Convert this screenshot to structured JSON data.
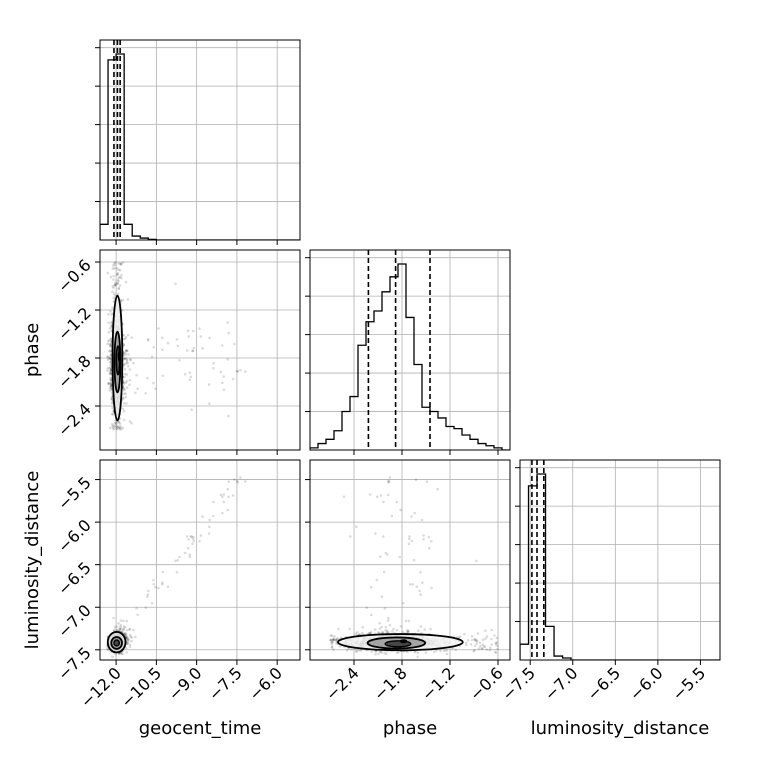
{
  "chart_data": {
    "type": "corner",
    "parameters": [
      "geocent_time",
      "phase",
      "luminosity_distance"
    ],
    "axes": {
      "geocent_time": {
        "label": "geocent_time",
        "ticks": [
          -12.0,
          -10.5,
          -9.0,
          -7.5,
          -6.0
        ],
        "tick_labels": [
          "−12.0",
          "−10.5",
          "−9.0",
          "−7.5",
          "−6.0"
        ],
        "range": [
          -12.6,
          -5.15
        ],
        "quantiles": [
          -12.08,
          -11.95,
          -11.85
        ]
      },
      "phase": {
        "label": "phase",
        "ticks": [
          -2.4,
          -1.8,
          -1.2,
          -0.6
        ],
        "tick_labels": [
          "−2.4",
          "−1.8",
          "−1.2",
          "−0.6"
        ],
        "range": [
          -2.95,
          -0.45
        ],
        "quantiles": [
          -2.22,
          -1.88,
          -1.45
        ]
      },
      "luminosity_distance": {
        "label": "luminosity_distance",
        "ticks": [
          -7.5,
          -7.0,
          -6.5,
          -6.0,
          -5.5
        ],
        "tick_labels": [
          "−7.5",
          "−7.0",
          "−6.5",
          "−6.0",
          "−5.5"
        ],
        "range": [
          -7.62,
          -5.27
        ],
        "quantiles": [
          -7.48,
          -7.42,
          -7.34
        ]
      }
    },
    "histograms": {
      "geocent_time": {
        "bin_edges": [
          -12.6,
          -12.3,
          -12.0,
          -11.7,
          -11.4,
          -11.1,
          -10.8,
          -10.5,
          -10.2
        ],
        "counts": [
          8,
          92,
          95,
          8,
          2,
          1,
          0.3,
          0
        ]
      },
      "phase": {
        "bin_edges": [
          -2.95,
          -2.85,
          -2.75,
          -2.65,
          -2.55,
          -2.45,
          -2.35,
          -2.25,
          -2.15,
          -2.05,
          -1.95,
          -1.85,
          -1.75,
          -1.65,
          -1.55,
          -1.45,
          -1.35,
          -1.25,
          -1.15,
          -1.05,
          -0.95,
          -0.85,
          -0.75,
          -0.65,
          -0.55,
          -0.45
        ],
        "counts": [
          1,
          3,
          5,
          9,
          18,
          25,
          49,
          60,
          65,
          74,
          81,
          87,
          62,
          40,
          20,
          18,
          15,
          11,
          10,
          7,
          5,
          3,
          2,
          1,
          0
        ]
      },
      "luminosity_distance": {
        "bin_edges": [
          -7.62,
          -7.52,
          -7.42,
          -7.32,
          -7.22,
          -7.12,
          -7.02,
          -6.92
        ],
        "counts": [
          8,
          88,
          94,
          17,
          2,
          1,
          0
        ]
      }
    },
    "pairs": [
      {
        "x": "geocent_time",
        "y": "phase"
      },
      {
        "x": "geocent_time",
        "y": "luminosity_distance"
      },
      {
        "x": "phase",
        "y": "luminosity_distance"
      }
    ],
    "grid": true
  }
}
